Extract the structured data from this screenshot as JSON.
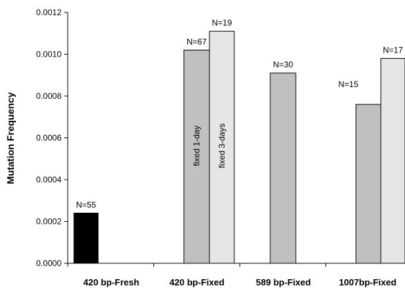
{
  "chart_data": {
    "type": "bar",
    "title": "",
    "xlabel": "",
    "ylabel": "Mutation Frequency",
    "ylim": [
      0,
      0.0012
    ],
    "yticks": [
      "0.0000",
      "0.0002",
      "0.0004",
      "0.0006",
      "0.0008",
      "0.0010",
      "0.0012"
    ],
    "grid": false,
    "legend": "none",
    "categories": [
      "420 bp-Fresh",
      "420 bp-Fixed",
      "589 bp-Fixed",
      "1007bp-Fixed"
    ],
    "bars": [
      {
        "category": "420 bp-Fresh",
        "value": 0.00024,
        "label": "N=55",
        "color": "#000000",
        "inner_label": ""
      },
      {
        "category": "420 bp-Fixed",
        "value": 0.00102,
        "label": "N=67",
        "color": "#c0c0c0",
        "inner_label": "fixed 1-day"
      },
      {
        "category": "420 bp-Fixed",
        "value": 0.00111,
        "label": "N=19",
        "color": "#e6e6e6",
        "inner_label": "fixed 3-days"
      },
      {
        "category": "589 bp-Fixed",
        "value": 0.00091,
        "label": "N=30",
        "color": "#c0c0c0",
        "inner_label": ""
      },
      {
        "category": "1007bp-Fixed",
        "value": 0.00076,
        "label": "N=15",
        "color": "#c0c0c0",
        "inner_label": ""
      },
      {
        "category": "1007bp-Fixed",
        "value": 0.00098,
        "label": "N=17",
        "color": "#e6e6e6",
        "inner_label": ""
      }
    ]
  }
}
